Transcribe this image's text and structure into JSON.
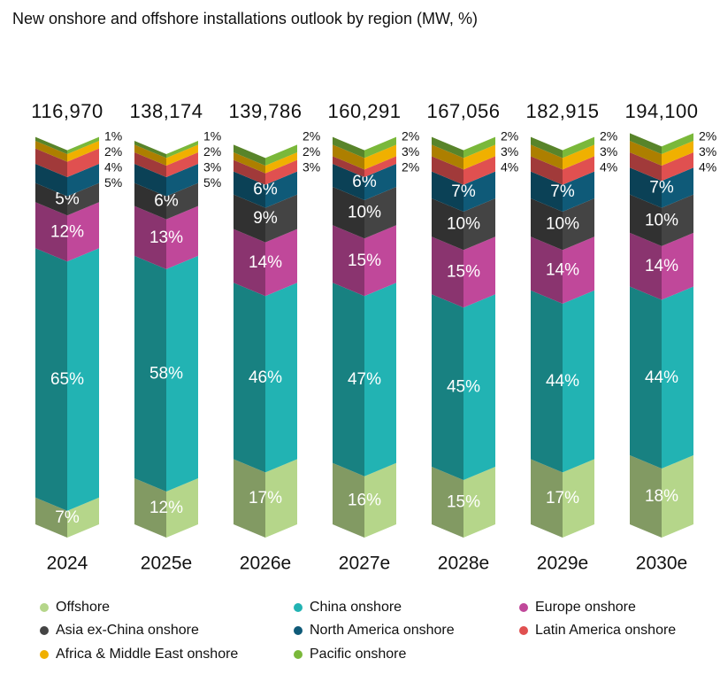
{
  "chart_data": {
    "type": "stacked-column-3d",
    "title": "New onshore and offshore installations outlook by region (MW, %)",
    "categories": [
      "2024",
      "2025e",
      "2026e",
      "2027e",
      "2028e",
      "2029e",
      "2030e"
    ],
    "totals": {
      "values": [
        116970,
        138174,
        139786,
        160291,
        167056,
        182915,
        194100
      ],
      "value_labels": [
        "116,970",
        "138,174",
        "139,786",
        "160,291",
        "167,056",
        "182,915",
        "194,100"
      ]
    },
    "series": [
      {
        "name": "Offshore",
        "color": "#b5d68a",
        "values": [
          7,
          12,
          17,
          16,
          15,
          17,
          18
        ],
        "value_labels": [
          "7%",
          "12%",
          "17%",
          "16%",
          "15%",
          "17%",
          "18%"
        ]
      },
      {
        "name": "China onshore",
        "color": "#22b3b3",
        "values": [
          65,
          58,
          46,
          47,
          45,
          44,
          44
        ],
        "value_labels": [
          "65%",
          "58%",
          "46%",
          "47%",
          "45%",
          "44%",
          "44%"
        ]
      },
      {
        "name": "Europe onshore",
        "color": "#c0489a",
        "values": [
          12,
          13,
          14,
          15,
          15,
          14,
          14
        ],
        "value_labels": [
          "12%",
          "13%",
          "14%",
          "15%",
          "15%",
          "14%",
          "14%"
        ]
      },
      {
        "name": "Asia ex-China onshore",
        "color": "#444444",
        "values": [
          5,
          6,
          9,
          10,
          10,
          10,
          10
        ],
        "value_labels": [
          "5%",
          "6%",
          "9%",
          "10%",
          "10%",
          "10%",
          "10%"
        ]
      },
      {
        "name": "North America onshore",
        "color": "#0f5a78",
        "values": [
          5,
          5,
          6,
          6,
          7,
          7,
          7
        ],
        "value_labels": [
          "5%",
          "5%",
          "6%",
          "6%",
          "7%",
          "7%",
          "7%"
        ]
      },
      {
        "name": "Latin America onshore",
        "color": "#e05050",
        "values": [
          4,
          3,
          3,
          2,
          4,
          4,
          4
        ],
        "value_labels": [
          "4%",
          "3%",
          "3%",
          "2%",
          "4%",
          "4%",
          "4%"
        ]
      },
      {
        "name": "Africa & Middle East onshore",
        "color": "#f0b000",
        "values": [
          2,
          2,
          2,
          3,
          3,
          3,
          3
        ],
        "value_labels": [
          "2%",
          "2%",
          "2%",
          "3%",
          "3%",
          "3%",
          "3%"
        ]
      },
      {
        "name": "Pacific onshore",
        "color": "#7ab83a",
        "values": [
          1,
          1,
          2,
          2,
          2,
          2,
          2
        ],
        "value_labels": [
          "1%",
          "1%",
          "2%",
          "2%",
          "2%",
          "2%",
          "2%"
        ]
      }
    ]
  }
}
